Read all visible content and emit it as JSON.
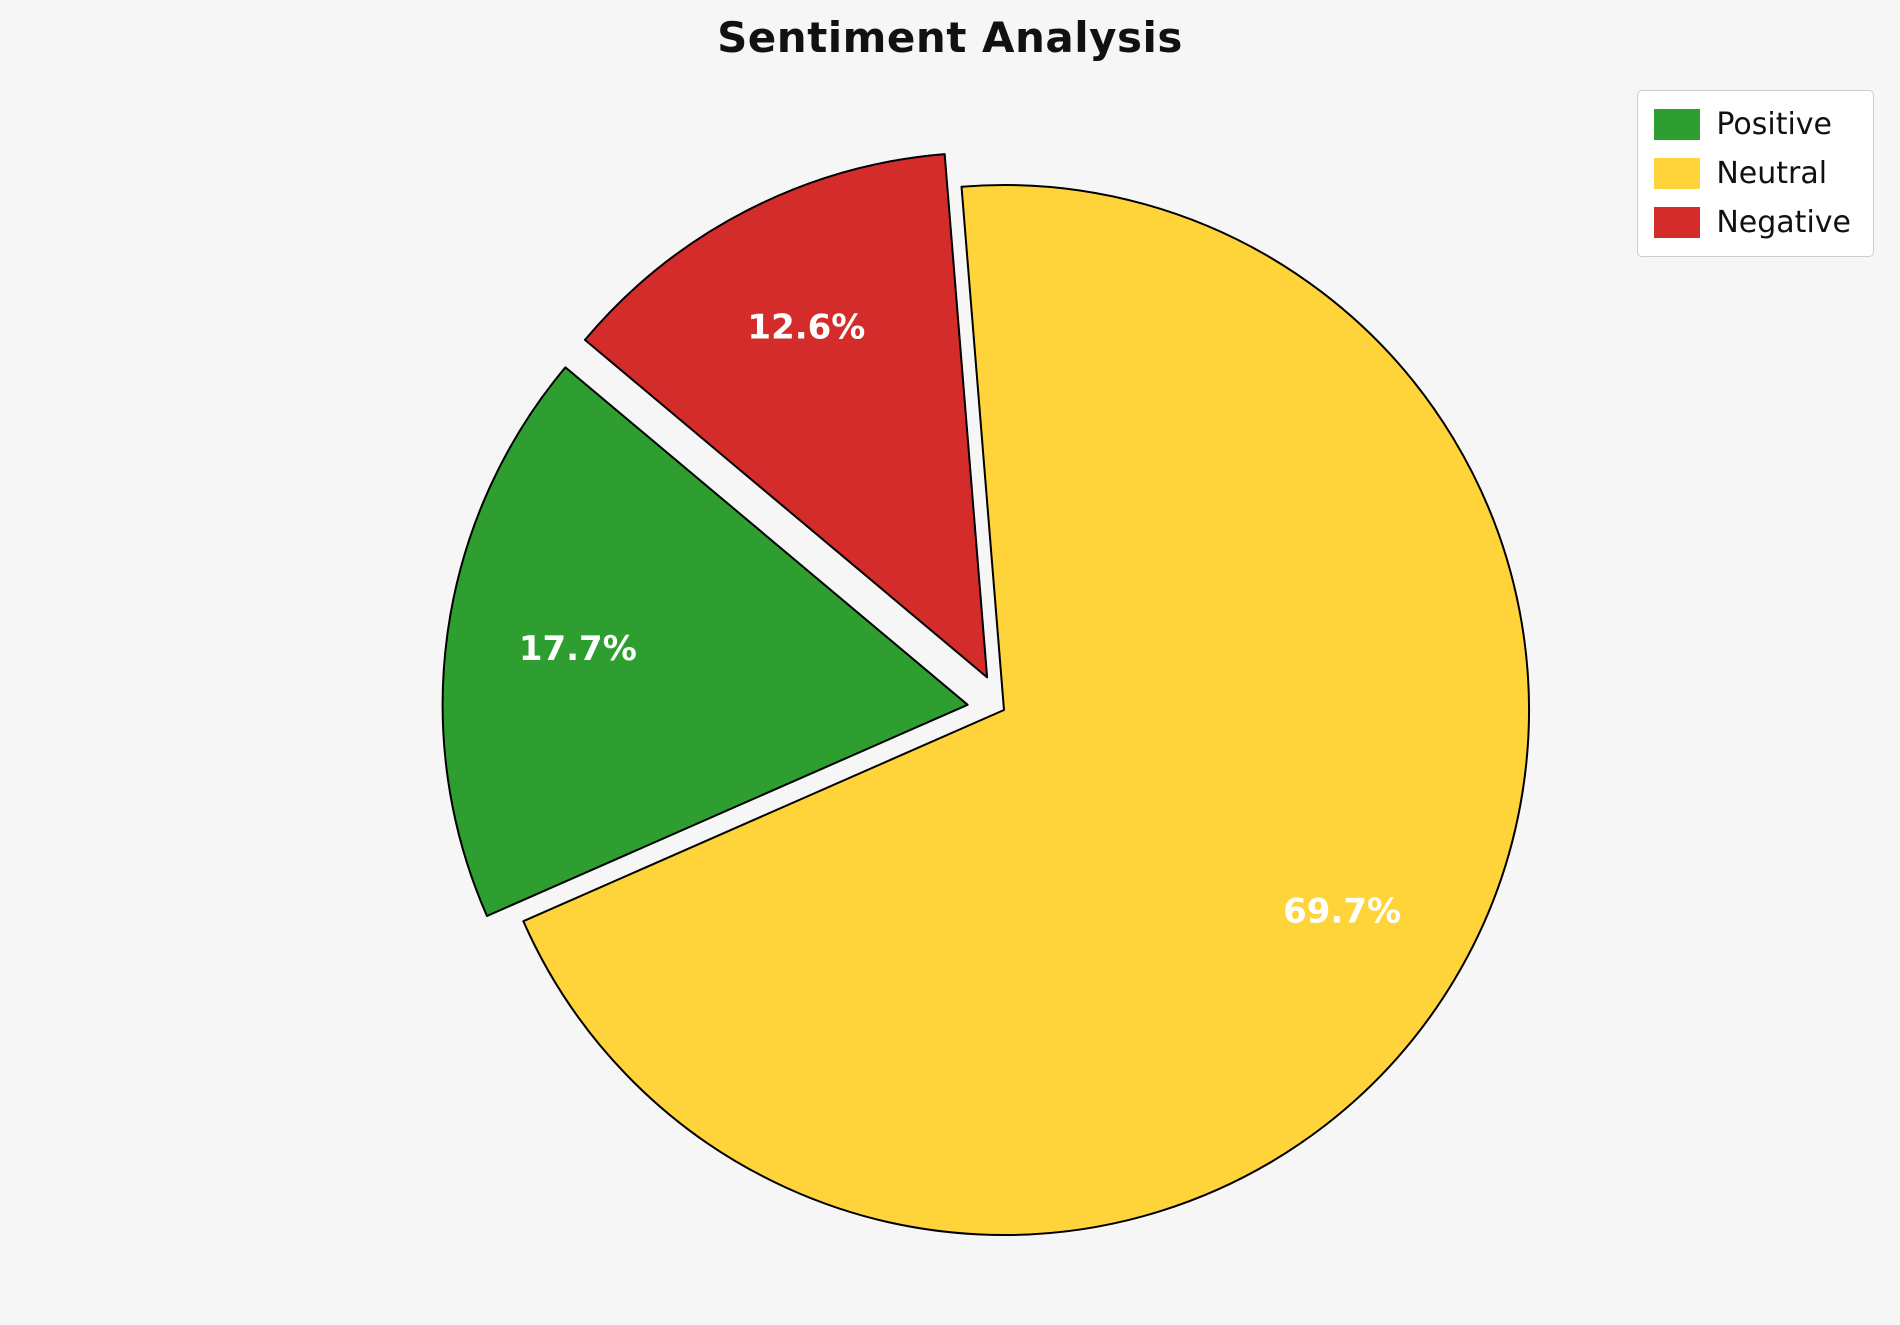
{
  "title": "Sentiment Analysis",
  "colors": {
    "background": "#f6f6f6",
    "slice_edge": "#000000",
    "percent_label_text": "#ffffff",
    "legend_background": "#ffffff",
    "legend_border": "#cccccc"
  },
  "chart_data": {
    "type": "pie",
    "title": "Sentiment Analysis",
    "categories": [
      "Positive",
      "Neutral",
      "Negative"
    ],
    "values": [
      17.7,
      69.7,
      12.6
    ],
    "percent_labels": [
      "17.7%",
      "69.7%",
      "12.6%"
    ],
    "slice_colors": [
      "#2e9e31",
      "#ffd43a",
      "#d42b2b"
    ],
    "start_angle": 140,
    "counterclockwise": true,
    "explode": [
      0.07,
      0,
      0.07
    ],
    "pct_distance": 0.75,
    "legend_position": "upper right",
    "grid": false,
    "legend": [
      {
        "label": "Positive",
        "color": "#2e9e31"
      },
      {
        "label": "Neutral",
        "color": "#ffd43a"
      },
      {
        "label": "Negative",
        "color": "#d42b2b"
      }
    ]
  }
}
